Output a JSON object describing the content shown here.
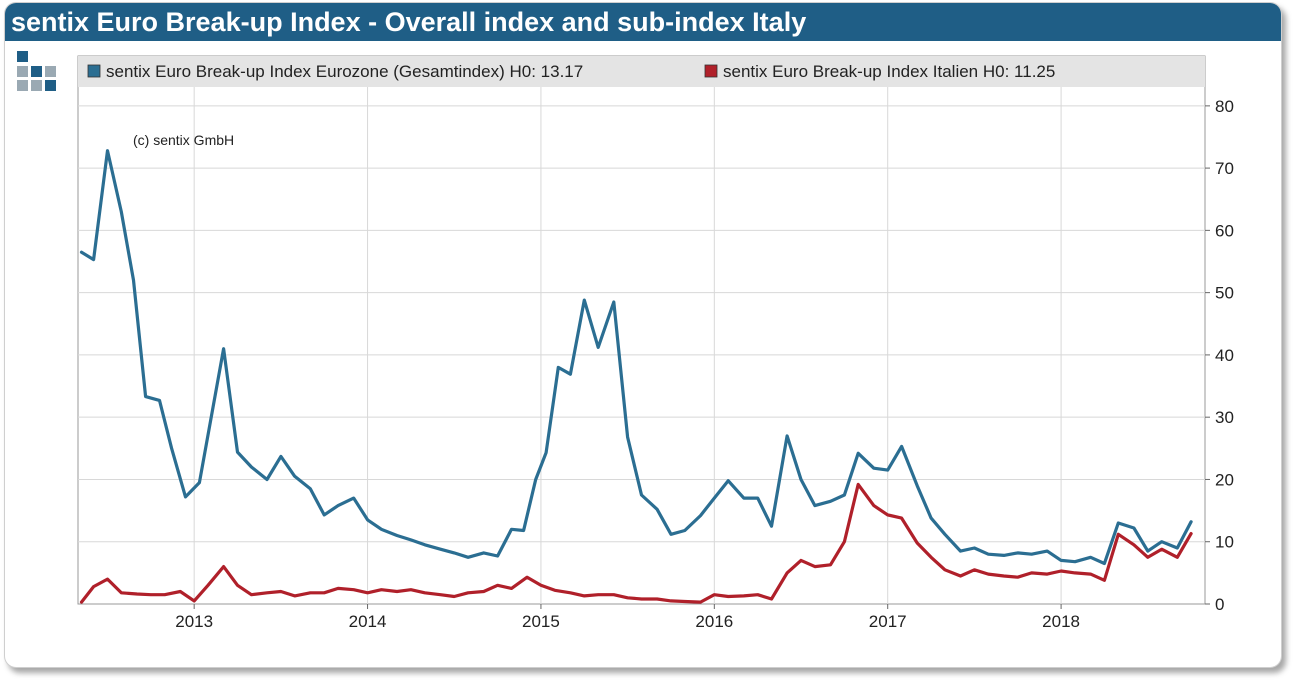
{
  "title": "sentix Euro Break-up Index - Overall index and sub-index Italy",
  "colors": {
    "header": "#1f5e86",
    "eurozone": "#2b6e92",
    "italy": "#b0202a",
    "grid": "#d8d8d8"
  },
  "chart_data": {
    "type": "line",
    "title": "sentix Euro Break-up Index - Overall index and sub-index Italy",
    "annotation": "(c) sentix GmbH",
    "xlabel": "",
    "ylabel": "",
    "x_range": [
      2012.33,
      2018.83
    ],
    "ylim": [
      0,
      88
    ],
    "y_ticks": [
      0,
      10,
      20,
      30,
      40,
      50,
      60,
      70,
      80
    ],
    "x_ticks": [
      {
        "label": "2013",
        "value": 2013
      },
      {
        "label": "2014",
        "value": 2014
      },
      {
        "label": "2015",
        "value": 2015
      },
      {
        "label": "2016",
        "value": 2016
      },
      {
        "label": "2017",
        "value": 2017
      },
      {
        "label": "2018",
        "value": 2018
      }
    ],
    "grid": true,
    "legend_position": "top",
    "series": [
      {
        "name": "sentix Euro Break-up Index Eurozone (Gesamtindex) H0: 13.17",
        "color": "#2b6e92",
        "points": [
          [
            2012.35,
            56.5
          ],
          [
            2012.42,
            55.3
          ],
          [
            2012.5,
            72.8
          ],
          [
            2012.58,
            63.0
          ],
          [
            2012.65,
            52.0
          ],
          [
            2012.72,
            33.3
          ],
          [
            2012.8,
            32.7
          ],
          [
            2012.87,
            25.0
          ],
          [
            2012.95,
            17.2
          ],
          [
            2013.03,
            19.5
          ],
          [
            2013.17,
            41.0
          ],
          [
            2013.25,
            24.4
          ],
          [
            2013.33,
            22.0
          ],
          [
            2013.42,
            20.0
          ],
          [
            2013.5,
            23.7
          ],
          [
            2013.58,
            20.5
          ],
          [
            2013.67,
            18.5
          ],
          [
            2013.75,
            14.3
          ],
          [
            2013.83,
            15.8
          ],
          [
            2013.92,
            17.0
          ],
          [
            2014.0,
            13.5
          ],
          [
            2014.08,
            12.0
          ],
          [
            2014.17,
            11.0
          ],
          [
            2014.25,
            10.3
          ],
          [
            2014.33,
            9.5
          ],
          [
            2014.42,
            8.8
          ],
          [
            2014.5,
            8.2
          ],
          [
            2014.58,
            7.5
          ],
          [
            2014.67,
            8.2
          ],
          [
            2014.75,
            7.7
          ],
          [
            2014.83,
            12.0
          ],
          [
            2014.9,
            11.8
          ],
          [
            2014.97,
            20.0
          ],
          [
            2015.03,
            24.3
          ],
          [
            2015.1,
            38.0
          ],
          [
            2015.17,
            36.9
          ],
          [
            2015.25,
            48.8
          ],
          [
            2015.33,
            41.2
          ],
          [
            2015.42,
            48.5
          ],
          [
            2015.5,
            26.8
          ],
          [
            2015.58,
            17.5
          ],
          [
            2015.67,
            15.2
          ],
          [
            2015.75,
            11.2
          ],
          [
            2015.83,
            11.8
          ],
          [
            2015.92,
            14.2
          ],
          [
            2016.0,
            17.0
          ],
          [
            2016.08,
            19.8
          ],
          [
            2016.17,
            17.0
          ],
          [
            2016.25,
            17.0
          ],
          [
            2016.33,
            12.5
          ],
          [
            2016.42,
            27.0
          ],
          [
            2016.5,
            20.0
          ],
          [
            2016.58,
            15.8
          ],
          [
            2016.67,
            16.5
          ],
          [
            2016.75,
            17.5
          ],
          [
            2016.83,
            24.2
          ],
          [
            2016.92,
            21.8
          ],
          [
            2017.0,
            21.5
          ],
          [
            2017.08,
            25.3
          ],
          [
            2017.17,
            19.0
          ],
          [
            2017.25,
            13.8
          ],
          [
            2017.33,
            11.2
          ],
          [
            2017.42,
            8.5
          ],
          [
            2017.5,
            9.0
          ],
          [
            2017.58,
            8.0
          ],
          [
            2017.67,
            7.8
          ],
          [
            2017.75,
            8.2
          ],
          [
            2017.83,
            8.0
          ],
          [
            2017.92,
            8.5
          ],
          [
            2018.0,
            7.0
          ],
          [
            2018.08,
            6.8
          ],
          [
            2018.17,
            7.5
          ],
          [
            2018.25,
            6.5
          ],
          [
            2018.33,
            13.0
          ],
          [
            2018.42,
            12.2
          ],
          [
            2018.5,
            8.5
          ],
          [
            2018.58,
            10.0
          ],
          [
            2018.67,
            9.0
          ],
          [
            2018.75,
            13.2
          ]
        ]
      },
      {
        "name": "sentix Euro Break-up Index Italien H0: 11.25",
        "color": "#b0202a",
        "points": [
          [
            2012.35,
            0.3
          ],
          [
            2012.42,
            2.8
          ],
          [
            2012.5,
            4.0
          ],
          [
            2012.58,
            1.8
          ],
          [
            2012.67,
            1.6
          ],
          [
            2012.75,
            1.5
          ],
          [
            2012.83,
            1.5
          ],
          [
            2012.92,
            2.0
          ],
          [
            2013.0,
            0.5
          ],
          [
            2013.08,
            3.0
          ],
          [
            2013.17,
            6.0
          ],
          [
            2013.25,
            3.0
          ],
          [
            2013.33,
            1.5
          ],
          [
            2013.42,
            1.8
          ],
          [
            2013.5,
            2.0
          ],
          [
            2013.58,
            1.3
          ],
          [
            2013.67,
            1.8
          ],
          [
            2013.75,
            1.8
          ],
          [
            2013.83,
            2.5
          ],
          [
            2013.92,
            2.3
          ],
          [
            2014.0,
            1.8
          ],
          [
            2014.08,
            2.3
          ],
          [
            2014.17,
            2.0
          ],
          [
            2014.25,
            2.3
          ],
          [
            2014.33,
            1.8
          ],
          [
            2014.42,
            1.5
          ],
          [
            2014.5,
            1.2
          ],
          [
            2014.58,
            1.8
          ],
          [
            2014.67,
            2.0
          ],
          [
            2014.75,
            3.0
          ],
          [
            2014.83,
            2.5
          ],
          [
            2014.92,
            4.3
          ],
          [
            2015.0,
            3.0
          ],
          [
            2015.08,
            2.2
          ],
          [
            2015.17,
            1.8
          ],
          [
            2015.25,
            1.3
          ],
          [
            2015.33,
            1.5
          ],
          [
            2015.42,
            1.5
          ],
          [
            2015.5,
            1.0
          ],
          [
            2015.58,
            0.8
          ],
          [
            2015.67,
            0.8
          ],
          [
            2015.75,
            0.5
          ],
          [
            2015.83,
            0.4
          ],
          [
            2015.92,
            0.3
          ],
          [
            2016.0,
            1.5
          ],
          [
            2016.08,
            1.2
          ],
          [
            2016.17,
            1.3
          ],
          [
            2016.25,
            1.5
          ],
          [
            2016.33,
            0.8
          ],
          [
            2016.42,
            5.0
          ],
          [
            2016.5,
            7.0
          ],
          [
            2016.58,
            6.0
          ],
          [
            2016.67,
            6.3
          ],
          [
            2016.75,
            10.0
          ],
          [
            2016.83,
            19.2
          ],
          [
            2016.92,
            15.8
          ],
          [
            2017.0,
            14.3
          ],
          [
            2017.08,
            13.8
          ],
          [
            2017.17,
            9.8
          ],
          [
            2017.25,
            7.5
          ],
          [
            2017.33,
            5.5
          ],
          [
            2017.42,
            4.5
          ],
          [
            2017.5,
            5.5
          ],
          [
            2017.58,
            4.8
          ],
          [
            2017.67,
            4.5
          ],
          [
            2017.75,
            4.3
          ],
          [
            2017.83,
            5.0
          ],
          [
            2017.92,
            4.8
          ],
          [
            2018.0,
            5.3
          ],
          [
            2018.08,
            5.0
          ],
          [
            2018.17,
            4.8
          ],
          [
            2018.25,
            3.8
          ],
          [
            2018.33,
            11.2
          ],
          [
            2018.42,
            9.5
          ],
          [
            2018.5,
            7.5
          ],
          [
            2018.58,
            8.8
          ],
          [
            2018.67,
            7.5
          ],
          [
            2018.75,
            11.3
          ]
        ]
      }
    ]
  }
}
